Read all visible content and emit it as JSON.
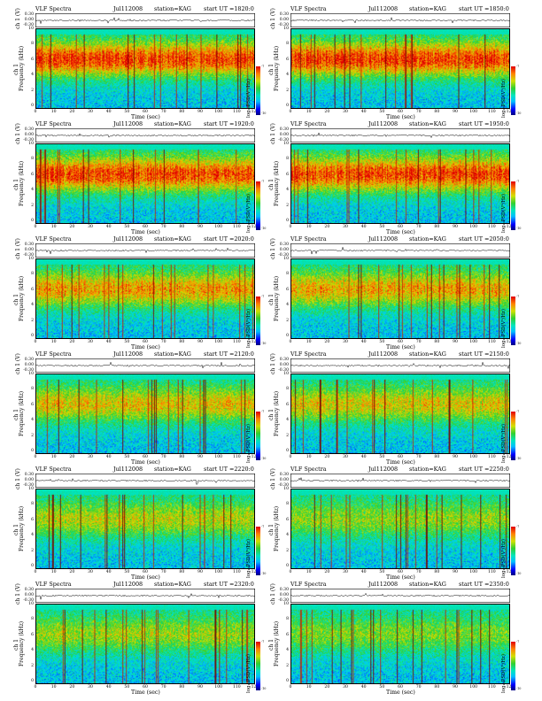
{
  "header_left": "VLF Spectra",
  "station": "station=KAG",
  "date": "Jul112008",
  "panels": [
    {
      "start_label": "start  UT  =1820:0",
      "date": "Jul112008"
    },
    {
      "start_label": "start  UT  =1850:0",
      "date": "Jul112008"
    },
    {
      "start_label": "start  UT  =1920:0",
      "date": "Jul112008"
    },
    {
      "start_label": "start  UT  =1950:0",
      "date": "Jul112008"
    },
    {
      "start_label": "start  UT  =2020:0",
      "date": "Jul112008"
    },
    {
      "start_label": "start  UT  =2050:0",
      "date": "Jul112008"
    },
    {
      "start_label": "start  UT  =2120:0",
      "date": "Jul112008"
    },
    {
      "start_label": "start  UT  =2150:0",
      "date": "Jul112008"
    },
    {
      "start_label": "start  UT  =2220:0",
      "date": "Jul112008"
    },
    {
      "start_label": "start  UT  =2250:0",
      "date": "Jul112008"
    },
    {
      "start_label": "start  UT  =2320:0",
      "date": "Jul112008"
    },
    {
      "start_label": "start  UT  =2350:0",
      "date": "Jul112008"
    }
  ],
  "ts_ylabel": "ch 1 (V)",
  "ts_ticks": [
    "0.30",
    "0.00",
    "-0.30"
  ],
  "spec_ylabel": "Frequency  (kHz)",
  "spec_ylabel_ch": "ch 1",
  "freq_ticks": [
    "10",
    "8",
    "6",
    "4",
    "2",
    "0"
  ],
  "time_ticks": [
    "0",
    "10",
    "20",
    "30",
    "40",
    "50",
    "60",
    "70",
    "80",
    "90",
    "100",
    "110",
    "120"
  ],
  "xlabel": "Time  (sec)",
  "colorbar_label": "log₁₀PSD(V²/Hz)",
  "colorbar_ticks": [
    "-7",
    "-10"
  ],
  "colors": {
    "background": "#ffffff",
    "text": "#000000"
  },
  "chart_data": {
    "type": "heatmap",
    "title": "VLF Spectra",
    "xlabel": "Time  (sec)",
    "ylabel": "Frequency  (kHz)",
    "xlim": [
      0,
      120
    ],
    "ylim": [
      0,
      10
    ],
    "colorscale": "jet",
    "panels_intensity": [
      0.92,
      0.92,
      0.9,
      0.9,
      0.7,
      0.68,
      0.6,
      0.58,
      0.5,
      0.42,
      0.45,
      0.38
    ]
  }
}
